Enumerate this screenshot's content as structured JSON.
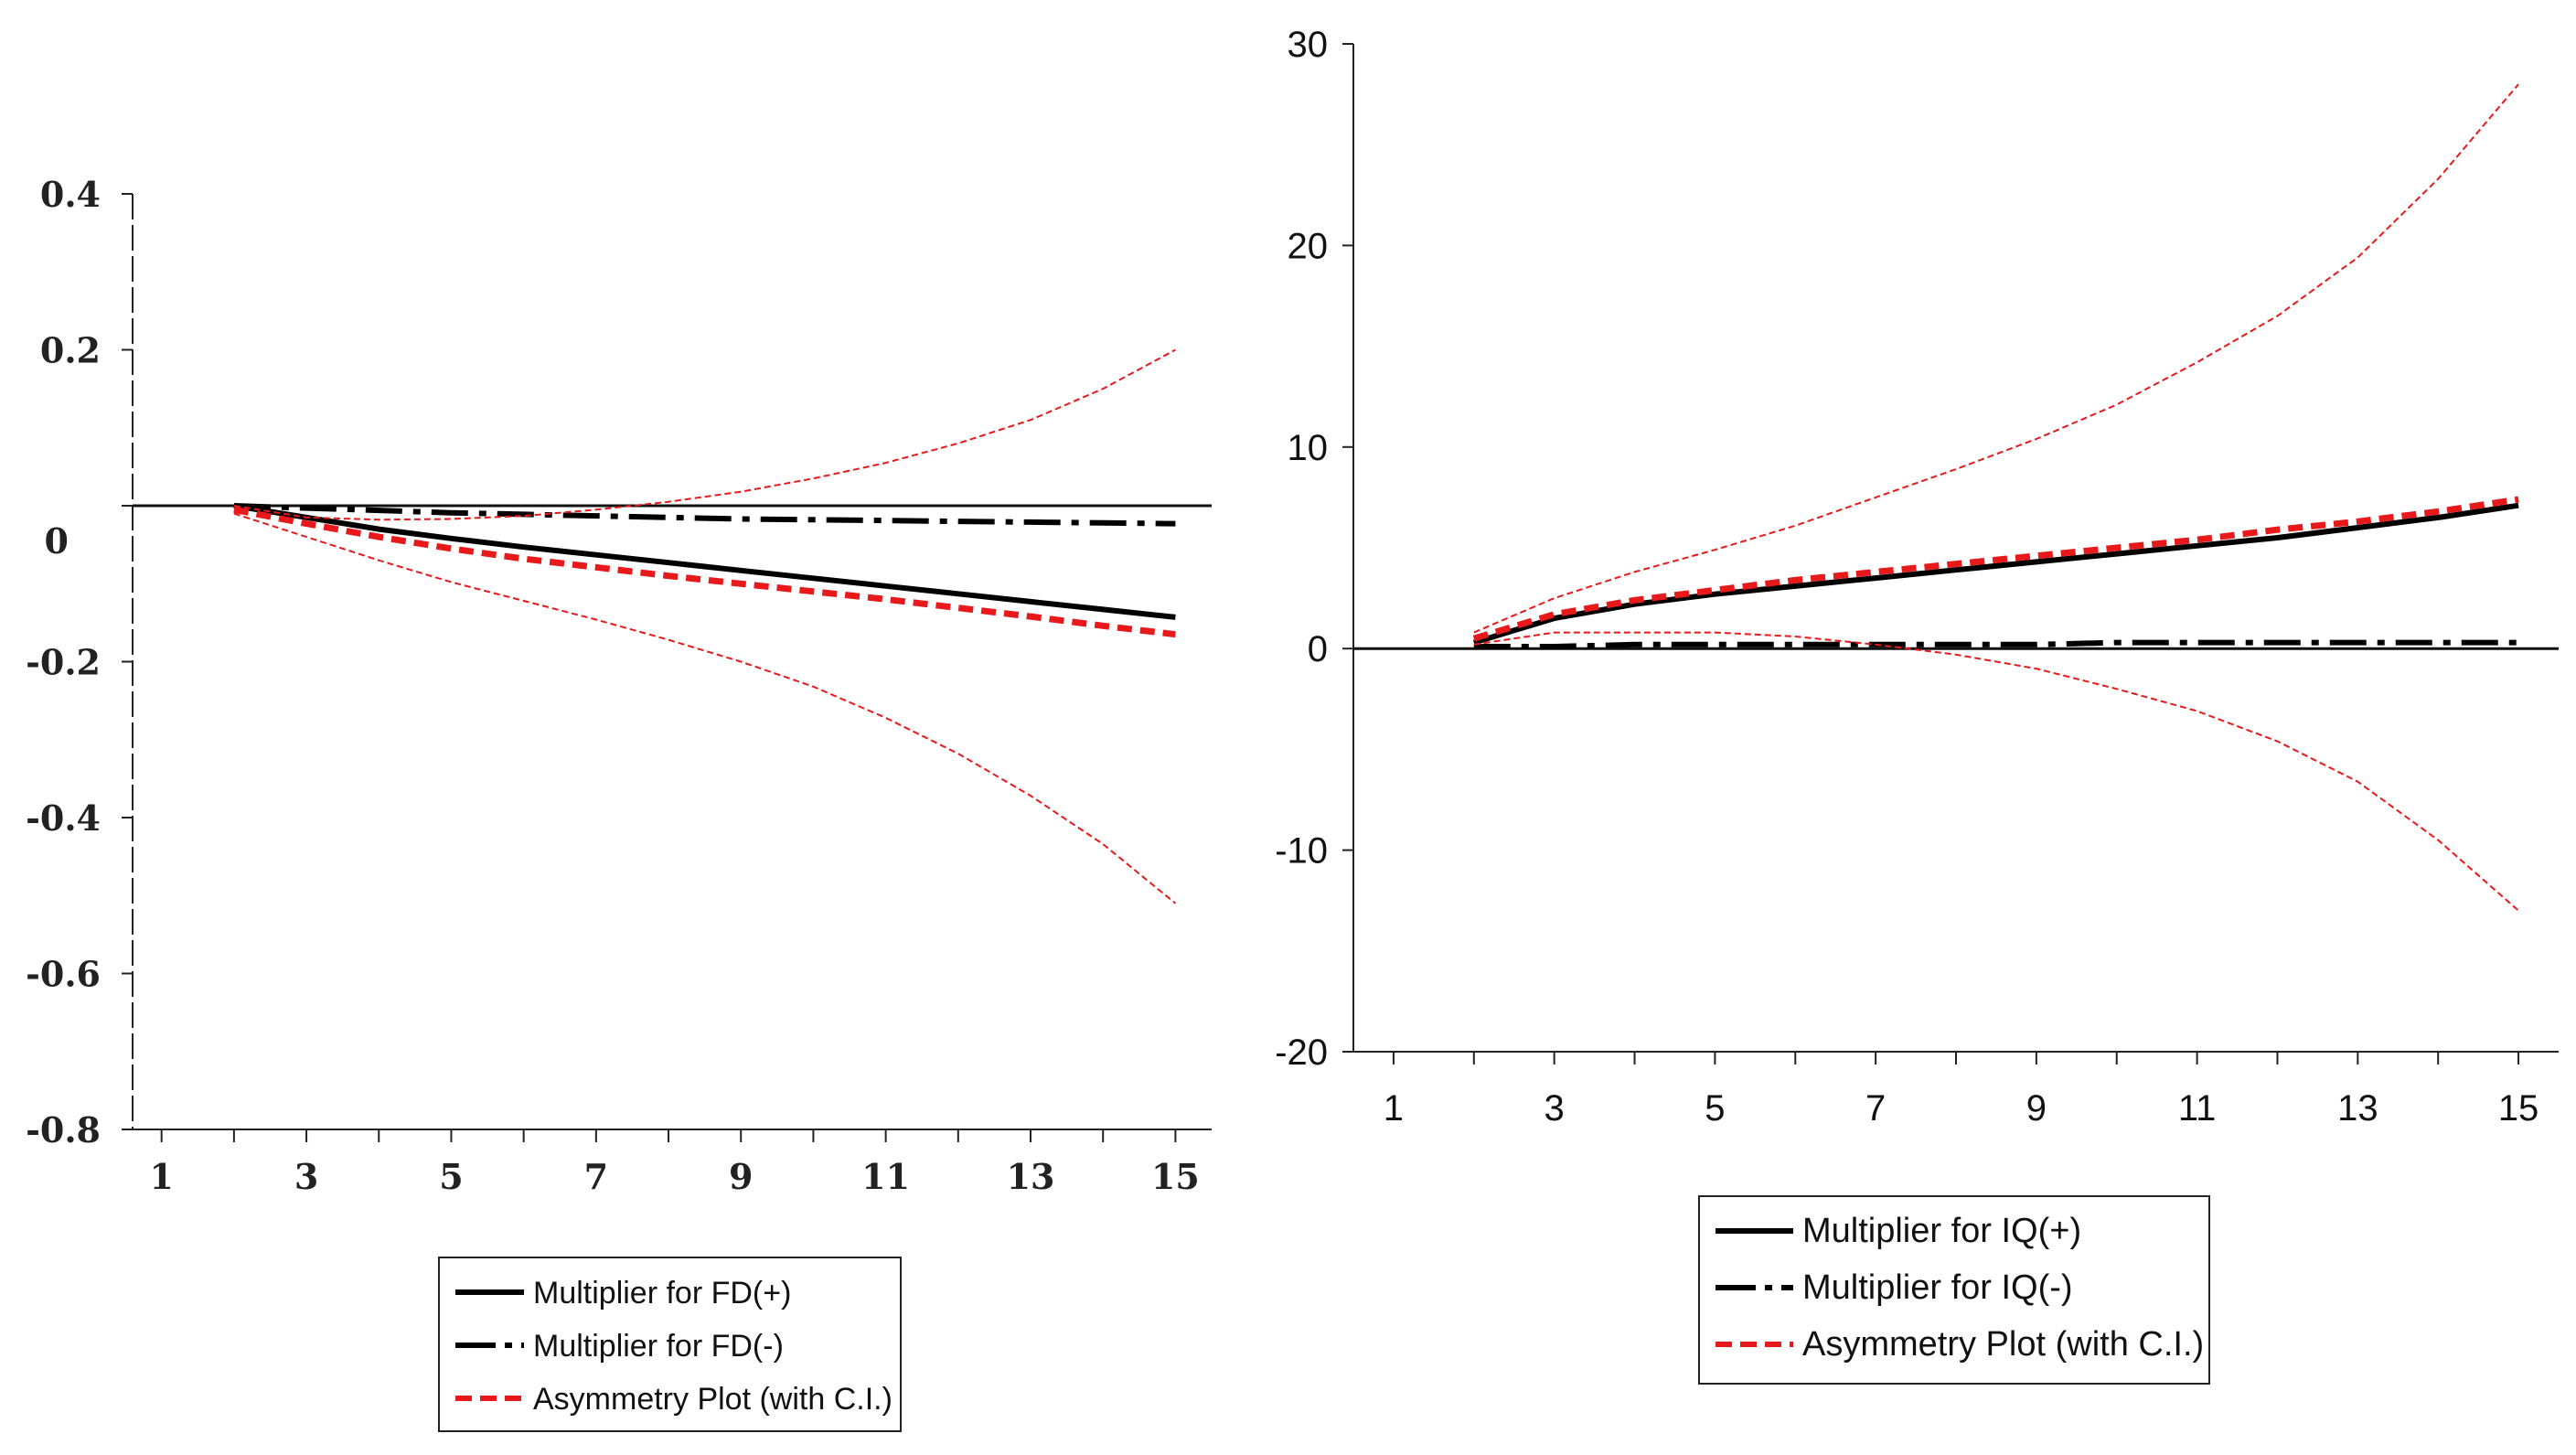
{
  "chart_data": [
    {
      "type": "line",
      "title": "",
      "xlabel": "",
      "ylabel": "",
      "x_tick_labels": [
        "1",
        "3",
        "5",
        "7",
        "9",
        "11",
        "13",
        "15"
      ],
      "y_tick_labels": [
        "0.4",
        "0.2",
        "0",
        "-0.2",
        "-0.4",
        "-0.6",
        "-0.8"
      ],
      "xlim": [
        0.6,
        15.5
      ],
      "ylim": [
        -0.8,
        0.4
      ],
      "x": [
        2,
        3,
        4,
        5,
        6,
        7,
        8,
        9,
        10,
        11,
        12,
        13,
        14,
        15
      ],
      "series": [
        {
          "name": "Multiplier for FD(+)",
          "style": "solid",
          "color": "#000000",
          "values": [
            0.0,
            -0.015,
            -0.03,
            -0.042,
            -0.053,
            -0.063,
            -0.073,
            -0.083,
            -0.093,
            -0.103,
            -0.113,
            -0.123,
            -0.133,
            -0.143
          ]
        },
        {
          "name": "Multiplier for FD(-)",
          "style": "dashdot",
          "color": "#000000",
          "values": [
            0.0,
            -0.003,
            -0.006,
            -0.009,
            -0.011,
            -0.013,
            -0.015,
            -0.017,
            -0.018,
            -0.019,
            -0.02,
            -0.021,
            -0.022,
            -0.023
          ]
        },
        {
          "name": "Asymmetry Plot (with C.I.)",
          "style": "dashed",
          "color": "#e8191b",
          "values": [
            -0.005,
            -0.023,
            -0.04,
            -0.055,
            -0.068,
            -0.079,
            -0.09,
            -0.1,
            -0.11,
            -0.12,
            -0.131,
            -0.142,
            -0.154,
            -0.165
          ]
        },
        {
          "name": "Upper C.I.",
          "style": "dotted-thin",
          "color": "#e8191b",
          "legend": false,
          "values": [
            0.0,
            -0.015,
            -0.018,
            -0.017,
            -0.013,
            -0.005,
            0.005,
            0.018,
            0.035,
            0.055,
            0.08,
            0.11,
            0.15,
            0.2
          ]
        },
        {
          "name": "Lower C.I.",
          "style": "dotted-thin",
          "color": "#e8191b",
          "legend": false,
          "values": [
            -0.01,
            -0.04,
            -0.07,
            -0.098,
            -0.122,
            -0.146,
            -0.172,
            -0.2,
            -0.232,
            -0.272,
            -0.318,
            -0.372,
            -0.434,
            -0.51
          ]
        }
      ],
      "legend": {
        "position": "bottom-center",
        "entries": [
          {
            "label": "Multiplier for FD(+)",
            "style": "solid"
          },
          {
            "label": "Multiplier for FD(-)",
            "style": "dashdot"
          },
          {
            "label": "Asymmetry Plot (with C.I.)",
            "style": "dashed"
          }
        ]
      }
    },
    {
      "type": "line",
      "title": "",
      "xlabel": "",
      "ylabel": "",
      "x_tick_labels": [
        "1",
        "3",
        "5",
        "7",
        "9",
        "11",
        "13",
        "15"
      ],
      "y_tick_labels": [
        "30",
        "20",
        "10",
        "0",
        "-10",
        "-20"
      ],
      "xlim": [
        0.5,
        15.5
      ],
      "ylim": [
        -20,
        30
      ],
      "x": [
        2,
        3,
        4,
        5,
        6,
        7,
        8,
        9,
        10,
        11,
        12,
        13,
        14,
        15
      ],
      "series": [
        {
          "name": "Multiplier for IQ(+)",
          "style": "solid",
          "color": "#000000",
          "values": [
            0.3,
            1.5,
            2.2,
            2.7,
            3.1,
            3.5,
            3.9,
            4.3,
            4.7,
            5.1,
            5.5,
            6.0,
            6.5,
            7.1
          ]
        },
        {
          "name": "Multiplier for IQ(-)",
          "style": "dashdot",
          "color": "#000000",
          "values": [
            0.1,
            0.1,
            0.2,
            0.2,
            0.2,
            0.2,
            0.2,
            0.2,
            0.3,
            0.3,
            0.3,
            0.3,
            0.3,
            0.3
          ]
        },
        {
          "name": "Asymmetry Plot (with C.I.)",
          "style": "dashed",
          "color": "#e8191b",
          "values": [
            0.5,
            1.7,
            2.4,
            2.9,
            3.4,
            3.8,
            4.2,
            4.6,
            5.0,
            5.4,
            5.9,
            6.3,
            6.8,
            7.4
          ]
        },
        {
          "name": "Upper C.I.",
          "style": "dotted-thin",
          "color": "#e8191b",
          "legend": false,
          "values": [
            0.8,
            2.5,
            3.8,
            4.9,
            6.1,
            7.5,
            8.9,
            10.4,
            12.1,
            14.2,
            16.5,
            19.4,
            23.3,
            28.0
          ]
        },
        {
          "name": "Lower C.I.",
          "style": "dotted-thin",
          "color": "#e8191b",
          "legend": false,
          "values": [
            0.2,
            0.8,
            0.8,
            0.8,
            0.6,
            0.2,
            -0.3,
            -1.0,
            -2.0,
            -3.1,
            -4.6,
            -6.6,
            -9.5,
            -13.0
          ]
        }
      ],
      "legend": {
        "position": "bottom-center",
        "entries": [
          {
            "label": "Multiplier for IQ(+)",
            "style": "solid"
          },
          {
            "label": "Multiplier for IQ(-)",
            "style": "dashdot"
          },
          {
            "label": "Asymmetry Plot (with C.I.)",
            "style": "dashed"
          }
        ]
      }
    }
  ]
}
